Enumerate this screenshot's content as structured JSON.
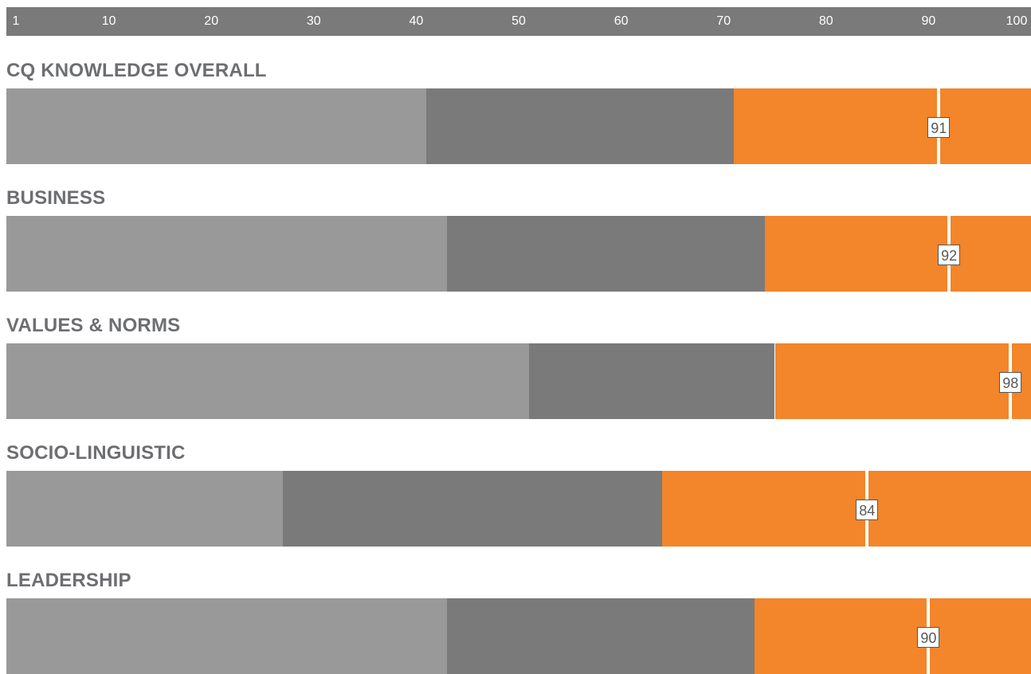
{
  "colors": {
    "low_band": "#999999",
    "mid_band": "#7a7a7b",
    "high_band": "#f3852a",
    "marker": "#ffffff",
    "title_text": "#6d6e71",
    "scale_background": "#7a7a7b"
  },
  "chart_data": {
    "type": "bar",
    "orientation": "horizontal",
    "xlim": [
      0,
      100
    ],
    "scale_ticks": [
      "1",
      "10",
      "20",
      "30",
      "40",
      "50",
      "60",
      "70",
      "80",
      "90",
      "100"
    ],
    "scale_tick_values": [
      1,
      10,
      20,
      30,
      40,
      50,
      60,
      70,
      80,
      90,
      100
    ],
    "legend": "none",
    "grid": false,
    "rows": [
      {
        "title": "CQ KNOWLEDGE OVERALL",
        "bands": [
          41,
          71,
          100
        ],
        "score": 91,
        "score_label": "91"
      },
      {
        "title": "BUSINESS",
        "bands": [
          43,
          74,
          100
        ],
        "score": 92,
        "score_label": "92"
      },
      {
        "title": "VALUES & NORMS",
        "bands": [
          51,
          75,
          100
        ],
        "score": 98,
        "score_label": "98"
      },
      {
        "title": "SOCIO-LINGUISTIC",
        "bands": [
          27,
          64,
          100
        ],
        "score": 84,
        "score_label": "84"
      },
      {
        "title": "LEADERSHIP",
        "bands": [
          43,
          73,
          100
        ],
        "score": 90,
        "score_label": "90"
      }
    ]
  }
}
